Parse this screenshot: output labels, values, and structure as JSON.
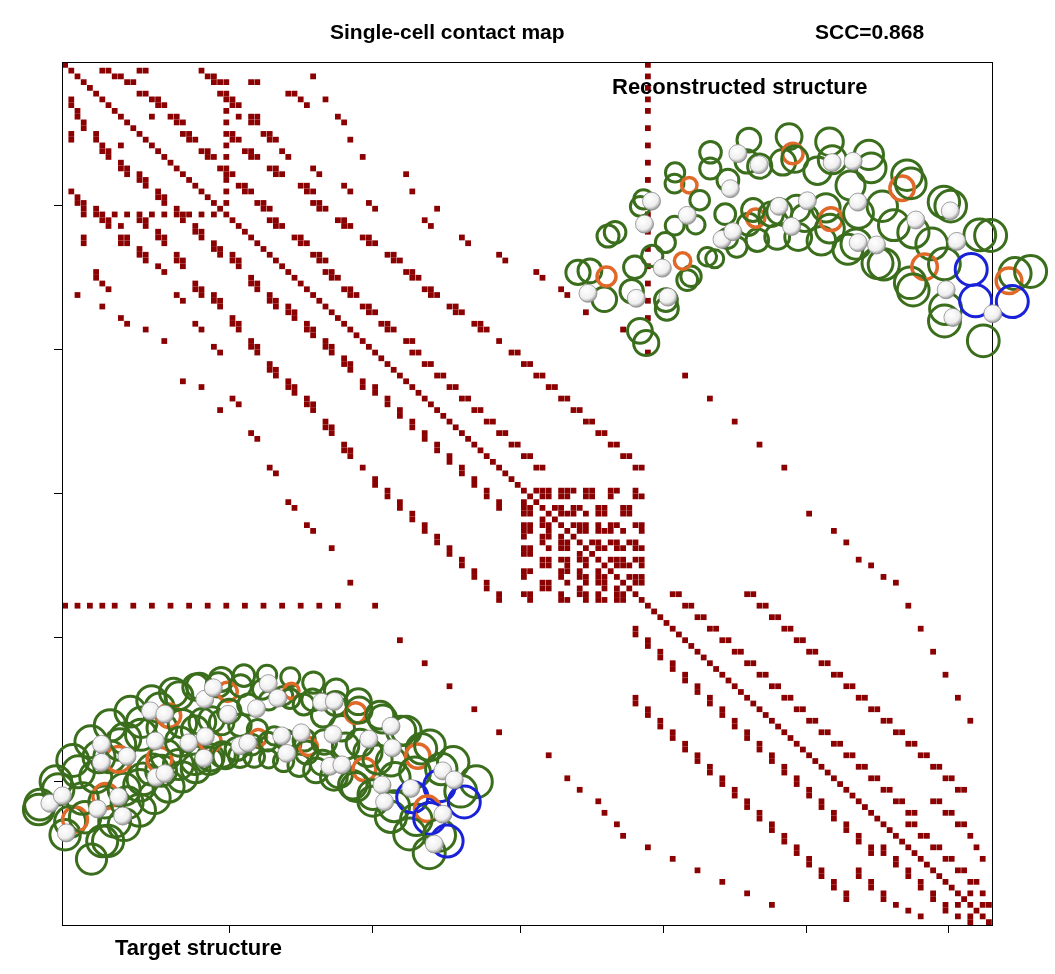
{
  "chart_data": {
    "type": "heatmap",
    "title": "Single-cell contact map",
    "annotations": [
      "SCC=0.868",
      "Reconstructed structure",
      "Target structure"
    ],
    "xlim": [
      0,
      150
    ],
    "ylim": [
      0,
      150
    ],
    "xticks": [
      27,
      50,
      74,
      97,
      120,
      143
    ],
    "yticks": [
      25,
      50,
      75,
      100,
      125
    ],
    "tick_labels": false,
    "color": "#8b0000",
    "contacts": [
      [
        0,
        0,
        94
      ],
      [
        1,
        1,
        6,
        7,
        12,
        13,
        22
      ],
      [
        2,
        2,
        8,
        9,
        23,
        24,
        40,
        94
      ],
      [
        3,
        3,
        10,
        11,
        24,
        25,
        26,
        30,
        31
      ],
      [
        4,
        4,
        94
      ],
      [
        5,
        5,
        12,
        13,
        25,
        26,
        36,
        37
      ],
      [
        6,
        6,
        14,
        15,
        26,
        27,
        38,
        42,
        94
      ],
      [
        7,
        7,
        15,
        16,
        27,
        28,
        39
      ],
      [
        8,
        8,
        26,
        94
      ],
      [
        9,
        9,
        14,
        17,
        18,
        28,
        30,
        31,
        44
      ],
      [
        10,
        10,
        18,
        19,
        26,
        30,
        31,
        45
      ],
      [
        11,
        11,
        94
      ],
      [
        12,
        12,
        19,
        20,
        26,
        27,
        32,
        33
      ],
      [
        13,
        13,
        20,
        21,
        27,
        28,
        33,
        34,
        46
      ],
      [
        14,
        14,
        26,
        94
      ],
      [
        15,
        15,
        22,
        23,
        29,
        30,
        35
      ],
      [
        16,
        16,
        23,
        24,
        26,
        30,
        31,
        36,
        48
      ],
      [
        17,
        17,
        94
      ],
      [
        18,
        18,
        25,
        26,
        33,
        34,
        40
      ],
      [
        19,
        19,
        26,
        27,
        34,
        35,
        41,
        55
      ],
      [
        20,
        20,
        26,
        94
      ],
      [
        21,
        21,
        28,
        29,
        38,
        39,
        45
      ],
      [
        22,
        22,
        26,
        29,
        30,
        39,
        40,
        46,
        56
      ],
      [
        23,
        23,
        94
      ],
      [
        24,
        24,
        26,
        31,
        32,
        40,
        41,
        49
      ],
      [
        25,
        25,
        32,
        33,
        41,
        42,
        50,
        60
      ],
      [
        26,
        26,
        94
      ],
      [
        27,
        27,
        33,
        34,
        44,
        45,
        58
      ],
      [
        28,
        28,
        34,
        35,
        45,
        46,
        59
      ],
      [
        29,
        29,
        94
      ],
      [
        30,
        30,
        37,
        38,
        48,
        49,
        64
      ],
      [
        31,
        31,
        38,
        39,
        49,
        50,
        65
      ],
      [
        32,
        32,
        94
      ],
      [
        33,
        33,
        40,
        41,
        52,
        53,
        70
      ],
      [
        34,
        34,
        41,
        42,
        53,
        54,
        71
      ],
      [
        35,
        35,
        94
      ],
      [
        36,
        36,
        42,
        43,
        55,
        56,
        76
      ],
      [
        37,
        37,
        43,
        44,
        56,
        57,
        77
      ],
      [
        38,
        38,
        94
      ],
      [
        39,
        39,
        45,
        46,
        58,
        59,
        80
      ],
      [
        40,
        40,
        46,
        47,
        59,
        60,
        81
      ],
      [
        41,
        41,
        94
      ],
      [
        42,
        42,
        48,
        49,
        62,
        63
      ],
      [
        43,
        43,
        49,
        50,
        63,
        64,
        84
      ],
      [
        44,
        44,
        94
      ],
      [
        45,
        45,
        51,
        52,
        66,
        67
      ],
      [
        46,
        46,
        52,
        53,
        67,
        68,
        90
      ],
      [
        47,
        47
      ],
      [
        48,
        48,
        55,
        56,
        70
      ],
      [
        49,
        49
      ],
      [
        50,
        50,
        56,
        57,
        72,
        73,
        94
      ],
      [
        51,
        51
      ],
      [
        52,
        52,
        58,
        59,
        74,
        75
      ],
      [
        53,
        53
      ],
      [
        54,
        54,
        60,
        61,
        76,
        77,
        100
      ],
      [
        55,
        55
      ],
      [
        56,
        56,
        62,
        63,
        78,
        79
      ],
      [
        57,
        57
      ],
      [
        58,
        58,
        64,
        65,
        80,
        81,
        104
      ],
      [
        59,
        59
      ],
      [
        60,
        60,
        66,
        67,
        82,
        83
      ],
      [
        61,
        61
      ],
      [
        62,
        62,
        68,
        69,
        84,
        85,
        108
      ],
      [
        63,
        63
      ],
      [
        64,
        64,
        70,
        71,
        86,
        87
      ],
      [
        65,
        65
      ],
      [
        66,
        66,
        72,
        73,
        88,
        89,
        112
      ],
      [
        67,
        67
      ],
      [
        68,
        68,
        74,
        75,
        90,
        91
      ],
      [
        69,
        69
      ],
      [
        70,
        70,
        76,
        77,
        92,
        93,
        116
      ],
      [
        71,
        71
      ],
      [
        72,
        72
      ],
      [
        73,
        73
      ],
      [
        74,
        74,
        76,
        77,
        78,
        80,
        81,
        82,
        84,
        85,
        88,
        89,
        92
      ],
      [
        75,
        75,
        77,
        78,
        80,
        81,
        84,
        85,
        88,
        92,
        93
      ],
      [
        76,
        76
      ],
      [
        77,
        77,
        79,
        80,
        82,
        83,
        86,
        87,
        90,
        91
      ],
      [
        78,
        78,
        80,
        81,
        82,
        84,
        86,
        87,
        90,
        91,
        120
      ],
      [
        79,
        79
      ],
      [
        80,
        80,
        82,
        83,
        84,
        86,
        88,
        89,
        92,
        93
      ],
      [
        81,
        81,
        83,
        84,
        86,
        87,
        88,
        90,
        93,
        124
      ],
      [
        82,
        82
      ],
      [
        83,
        83,
        85,
        86,
        88,
        89,
        91,
        92,
        126
      ],
      [
        84,
        84,
        86,
        87,
        89,
        90,
        92,
        93
      ],
      [
        85,
        85
      ],
      [
        86,
        86,
        88,
        89,
        90,
        92,
        93,
        128
      ],
      [
        87,
        87,
        89,
        90,
        91,
        93,
        130
      ],
      [
        88,
        88
      ],
      [
        89,
        89,
        91,
        92,
        93,
        132
      ],
      [
        90,
        90,
        92,
        93,
        134
      ],
      [
        91,
        91
      ],
      [
        92,
        92,
        98,
        99,
        110,
        111
      ],
      [
        93,
        93
      ],
      [
        94,
        94,
        100,
        101,
        112,
        113,
        136
      ],
      [
        95,
        95
      ],
      [
        96,
        96,
        102,
        103,
        114,
        115
      ],
      [
        97,
        97
      ],
      [
        98,
        98,
        104,
        105,
        116,
        117,
        138
      ],
      [
        99,
        99
      ],
      [
        100,
        100,
        106,
        107,
        118,
        119
      ],
      [
        101,
        101
      ],
      [
        102,
        102,
        108,
        109,
        120,
        121,
        140
      ],
      [
        103,
        103
      ],
      [
        104,
        104,
        110,
        111,
        122,
        123
      ],
      [
        105,
        105
      ],
      [
        106,
        106,
        112,
        113,
        124,
        125,
        142
      ],
      [
        107,
        107
      ],
      [
        108,
        108,
        114,
        115,
        126,
        127
      ],
      [
        109,
        109
      ],
      [
        110,
        110,
        116,
        117,
        128,
        129,
        144
      ],
      [
        111,
        111
      ],
      [
        112,
        112,
        118,
        119,
        130,
        131
      ],
      [
        113,
        113
      ],
      [
        114,
        114,
        120,
        121,
        132,
        133,
        146
      ],
      [
        115,
        115
      ],
      [
        116,
        116,
        122,
        123,
        134,
        135
      ],
      [
        117,
        117
      ],
      [
        118,
        118,
        124,
        125,
        136,
        137
      ],
      [
        119,
        119
      ],
      [
        120,
        120,
        126,
        127,
        138,
        139
      ],
      [
        121,
        121
      ],
      [
        122,
        122,
        128,
        129,
        140,
        141
      ],
      [
        123,
        123
      ],
      [
        124,
        124,
        130,
        131,
        142,
        143
      ],
      [
        125,
        125
      ],
      [
        126,
        126,
        132,
        133,
        144,
        145
      ],
      [
        127,
        127
      ],
      [
        128,
        128,
        134,
        135,
        140,
        141
      ],
      [
        129,
        129
      ],
      [
        130,
        130,
        136,
        137,
        142,
        143
      ],
      [
        131,
        131
      ],
      [
        132,
        132,
        136,
        137,
        144,
        145
      ],
      [
        133,
        133
      ],
      [
        134,
        134,
        138,
        139,
        146
      ],
      [
        135,
        135
      ],
      [
        136,
        136,
        140,
        141,
        147
      ],
      [
        137,
        137
      ],
      [
        138,
        138,
        142,
        143,
        148
      ],
      [
        139,
        139
      ],
      [
        140,
        140,
        144,
        145
      ],
      [
        141,
        141
      ],
      [
        142,
        142,
        146,
        147
      ],
      [
        143,
        143
      ],
      [
        144,
        144,
        146,
        148
      ],
      [
        145,
        145
      ],
      [
        146,
        146,
        148,
        149
      ],
      [
        147,
        147
      ],
      [
        148,
        148
      ],
      [
        149,
        149
      ]
    ]
  }
}
